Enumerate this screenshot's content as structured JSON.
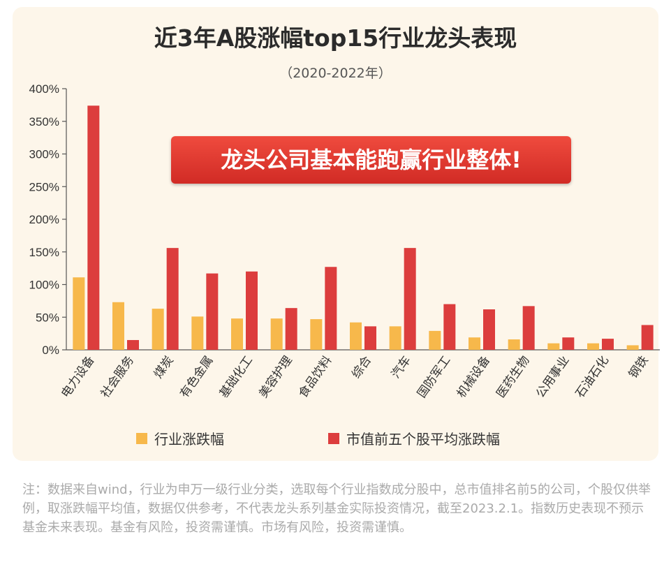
{
  "chart_data": {
    "type": "bar",
    "title": "近3年A股涨幅top15行业龙头表现",
    "subtitle": "（2020-2022年）",
    "annotation": "龙头公司基本能跑赢行业整体!",
    "categories": [
      "电力设备",
      "社会服务",
      "煤炭",
      "有色金属",
      "基础化工",
      "美容护理",
      "食品饮料",
      "综合",
      "汽车",
      "国防军工",
      "机械设备",
      "医药生物",
      "公用事业",
      "石油石化",
      "钢铁"
    ],
    "series": [
      {
        "name": "行业涨跌幅",
        "color": "#f7b84b",
        "values": [
          111,
          73,
          63,
          51,
          48,
          48,
          47,
          42,
          36,
          29,
          19,
          16,
          10,
          10,
          7
        ]
      },
      {
        "name": "市值前五个股平均涨跌幅",
        "color": "#dc3d3d",
        "values": [
          374,
          15,
          156,
          117,
          120,
          64,
          127,
          36,
          156,
          70,
          62,
          67,
          19,
          17,
          38
        ]
      }
    ],
    "y_ticks": [
      "0%",
      "50%",
      "100%",
      "150%",
      "200%",
      "250%",
      "300%",
      "350%",
      "400%"
    ],
    "ylim": [
      0,
      400
    ],
    "legend_position": "bottom",
    "grid": false
  },
  "footnote": "注：数据来自wind，行业为申万一级行业分类，选取每个行业指数成分股中，总市值排名前5的公司，个股仅供举例，取涨跌幅平均值，数据仅供参考，不代表龙头系列基金实际投资情况，截至2023.2.1。指数历史表现不预示基金未来表现。基金有风险，投资需谨慎。市场有风险，投资需谨慎。"
}
